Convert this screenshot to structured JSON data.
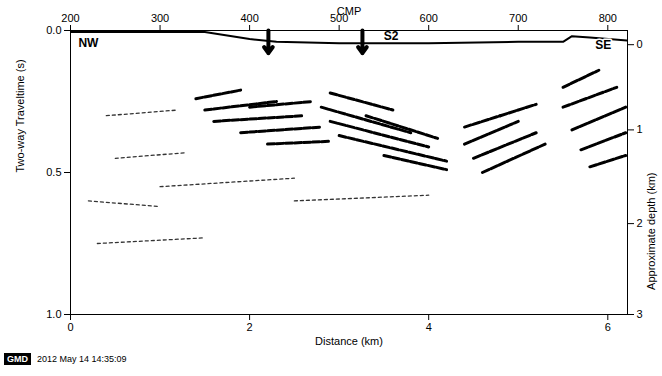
{
  "chart_data": {
    "type": "seismic_section",
    "xlabel": "Distance (km)",
    "ylabel": "Two-way Traveltime (s)",
    "x2label": "CMP",
    "y2label": "Approximate depth (km)",
    "xlim": [
      0,
      6.22
    ],
    "xticks": [
      0,
      2,
      4,
      6
    ],
    "ylim": [
      0,
      1.0
    ],
    "yticks": [
      {
        "value": 0,
        "label": "0.0"
      },
      {
        "value": 0.5,
        "label": "0.5"
      },
      {
        "value": 1.0,
        "label": "1.0"
      }
    ],
    "x2lim": [
      200,
      822
    ],
    "x2ticks": [
      200,
      300,
      400,
      500,
      600,
      700,
      800
    ],
    "y2ticks": [
      0,
      1,
      2,
      3
    ],
    "y2tick_twt": [
      0.05,
      0.35,
      0.68,
      1.0
    ],
    "seafloor": {
      "x": [
        0,
        1.5,
        2.0,
        2.3,
        3.0,
        4.0,
        5.0,
        5.5,
        5.6,
        5.8,
        6.22
      ],
      "y": [
        0.005,
        0.005,
        0.03,
        0.04,
        0.045,
        0.045,
        0.04,
        0.04,
        0.02,
        0.025,
        0.035
      ]
    },
    "reflectors": [
      {
        "x": [
          1.4,
          1.9
        ],
        "y": [
          0.24,
          0.21
        ]
      },
      {
        "x": [
          1.5,
          2.3
        ],
        "y": [
          0.28,
          0.25
        ]
      },
      {
        "x": [
          1.6,
          2.6
        ],
        "y": [
          0.32,
          0.3
        ]
      },
      {
        "x": [
          1.9,
          2.8
        ],
        "y": [
          0.36,
          0.34
        ]
      },
      {
        "x": [
          2.0,
          2.7
        ],
        "y": [
          0.27,
          0.25
        ]
      },
      {
        "x": [
          2.2,
          2.9
        ],
        "y": [
          0.4,
          0.39
        ]
      },
      {
        "x": [
          2.9,
          3.6
        ],
        "y": [
          0.22,
          0.28
        ]
      },
      {
        "x": [
          2.8,
          3.8
        ],
        "y": [
          0.27,
          0.36
        ]
      },
      {
        "x": [
          2.9,
          4.0
        ],
        "y": [
          0.32,
          0.41
        ]
      },
      {
        "x": [
          3.0,
          4.2
        ],
        "y": [
          0.37,
          0.46
        ]
      },
      {
        "x": [
          3.3,
          4.1
        ],
        "y": [
          0.3,
          0.38
        ]
      },
      {
        "x": [
          3.5,
          4.2
        ],
        "y": [
          0.44,
          0.49
        ]
      },
      {
        "x": [
          4.4,
          5.0
        ],
        "y": [
          0.4,
          0.32
        ]
      },
      {
        "x": [
          4.5,
          5.2
        ],
        "y": [
          0.45,
          0.36
        ]
      },
      {
        "x": [
          4.6,
          5.3
        ],
        "y": [
          0.5,
          0.4
        ]
      },
      {
        "x": [
          4.8,
          5.2
        ],
        "y": [
          0.3,
          0.26
        ]
      },
      {
        "x": [
          4.4,
          4.8
        ],
        "y": [
          0.34,
          0.3
        ]
      },
      {
        "x": [
          5.5,
          5.9
        ],
        "y": [
          0.2,
          0.14
        ]
      },
      {
        "x": [
          5.5,
          6.1
        ],
        "y": [
          0.27,
          0.2
        ]
      },
      {
        "x": [
          5.6,
          6.2
        ],
        "y": [
          0.35,
          0.27
        ]
      },
      {
        "x": [
          5.7,
          6.2
        ],
        "y": [
          0.42,
          0.36
        ]
      },
      {
        "x": [
          5.8,
          6.2
        ],
        "y": [
          0.48,
          0.44
        ]
      }
    ],
    "weak_reflectors": [
      {
        "x": [
          0.4,
          1.2
        ],
        "y": [
          0.3,
          0.28
        ]
      },
      {
        "x": [
          0.5,
          1.3
        ],
        "y": [
          0.45,
          0.43
        ]
      },
      {
        "x": [
          0.2,
          1.0
        ],
        "y": [
          0.6,
          0.62
        ]
      },
      {
        "x": [
          1.0,
          2.5
        ],
        "y": [
          0.55,
          0.52
        ]
      },
      {
        "x": [
          2.5,
          4.0
        ],
        "y": [
          0.6,
          0.58
        ]
      },
      {
        "x": [
          0.3,
          1.5
        ],
        "y": [
          0.75,
          0.73
        ]
      }
    ],
    "arrows": [
      {
        "x": 2.21,
        "y1": 0.0,
        "y2": 0.08
      },
      {
        "x": 3.26,
        "y1": 0.0,
        "y2": 0.08
      }
    ],
    "annotations": [
      {
        "text": "NW",
        "x": 0.2,
        "y": 0.045
      },
      {
        "text": "S2",
        "x": 3.58,
        "y": 0.02
      },
      {
        "text": "SE",
        "x": 5.95,
        "y": 0.05
      }
    ],
    "footer": {
      "logo": "GMD",
      "text": "2012 May 14 14:35:09"
    }
  }
}
